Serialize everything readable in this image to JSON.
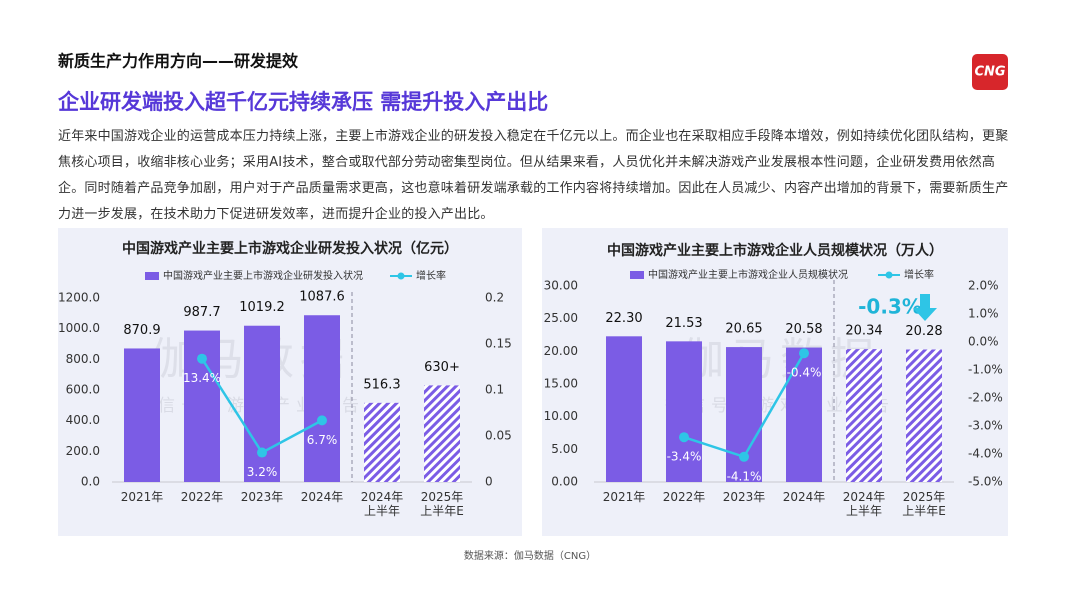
{
  "section_title": "新质生产力作用方向——研发提效",
  "headline": "企业研发端投入超千亿元持续承压  需提升投入产出比",
  "body": "近年来中国游戏企业的运营成本压力持续上涨，主要上市游戏企业的研发投入稳定在千亿元以上。而企业也在采取相应手段降本增效，例如持续优化团队结构，更聚焦核心项目，收缩非核心业务；采用AI技术，整合或取代部分劳动密集型岗位。但从结果来看，人员优化并未解决游戏产业发展根本性问题，企业研发费用依然高企。同时随着产品竞争加剧，用户对于产品质量需求更高，这也意味着研发端承载的工作内容将持续增加。因此在人员减少、内容产出增加的背景下，需要新质生产力进一步发展，在技术助力下促进研发效率，进而提升企业的投入产出比。",
  "logo": "CNG",
  "watermark": [
    "伽马数据",
    "微信号：游戏产业报告"
  ],
  "source": "数据来源：伽马数据（CNG）",
  "chart_data": [
    {
      "type": "bar",
      "title": "中国游戏产业主要上市游戏企业研发投入状况（亿元）",
      "categories": [
        "2021年",
        "2022年",
        "2023年",
        "2024年",
        "2024年\n上半年",
        "2025年\n上半年E"
      ],
      "series": [
        {
          "name": "中国游戏产业主要上市游戏企业研发投入状况",
          "type": "bar",
          "color": "#7b5ce5",
          "values": [
            870.9,
            987.7,
            1019.2,
            1087.6,
            516.3,
            630
          ],
          "value_labels": [
            "870.9",
            "987.7",
            "1019.2",
            "1087.6",
            "516.3",
            "630+"
          ],
          "hatched": [
            false,
            false,
            false,
            false,
            true,
            true
          ]
        },
        {
          "name": "增长率",
          "type": "line",
          "axis": "y2",
          "color": "#2ec5e6",
          "values": [
            null,
            0.134,
            0.032,
            0.067,
            null,
            null
          ],
          "value_labels": [
            null,
            "13.4%",
            "3.2%",
            "6.7%",
            null,
            null
          ]
        }
      ],
      "ylim": [
        0,
        1200
      ],
      "yticks": [
        {
          "value": 0,
          "label": "0.0"
        },
        {
          "value": 200,
          "label": "200.0"
        },
        {
          "value": 400,
          "label": "400.0"
        },
        {
          "value": 600,
          "label": "600.0"
        },
        {
          "value": 800,
          "label": "800.0"
        },
        {
          "value": 1000,
          "label": "1000.0"
        },
        {
          "value": 1200,
          "label": "1200.0"
        }
      ],
      "y2lim": [
        0,
        0.2
      ],
      "y2ticks": [
        0,
        0.05,
        0.1,
        0.15,
        0.2
      ],
      "grid": false,
      "legend": "top"
    },
    {
      "type": "bar",
      "title": "中国游戏产业主要上市游戏企业人员规模状况（万人）",
      "categories": [
        "2021年",
        "2022年",
        "2023年",
        "2024年",
        "2024年\n上半年",
        "2025年\n上半年E"
      ],
      "series": [
        {
          "name": "中国游戏产业主要上市游戏企业人员规模状况",
          "type": "bar",
          "color": "#7b5ce5",
          "values": [
            22.3,
            21.53,
            20.65,
            20.58,
            20.34,
            20.28
          ],
          "value_labels": [
            "22.30",
            "21.53",
            "20.65",
            "20.58",
            "20.34",
            "20.28"
          ],
          "hatched": [
            false,
            false,
            false,
            false,
            true,
            true
          ]
        },
        {
          "name": "增长率",
          "type": "line",
          "axis": "y2",
          "color": "#2ec5e6",
          "values": [
            null,
            -0.034,
            -0.041,
            -0.004,
            null,
            null
          ],
          "value_labels": [
            null,
            "-3.4%",
            "-4.1%",
            "-0.4%",
            null,
            null
          ]
        }
      ],
      "ylim": [
        0,
        30
      ],
      "yticks": [
        {
          "value": 0,
          "label": "0.00"
        },
        {
          "value": 5,
          "label": "5.00"
        },
        {
          "value": 10,
          "label": "10.00"
        },
        {
          "value": 15,
          "label": "15.00"
        },
        {
          "value": 20,
          "label": "20.00"
        },
        {
          "value": 25,
          "label": "25.00"
        },
        {
          "value": 30,
          "label": "30.00"
        }
      ],
      "y2lim": [
        -0.05,
        0.02
      ],
      "y2ticks": [
        {
          "value": -0.05,
          "label": "-5.0%"
        },
        {
          "value": -0.04,
          "label": "-4.0%"
        },
        {
          "value": -0.03,
          "label": "-3.0%"
        },
        {
          "value": -0.02,
          "label": "-2.0%"
        },
        {
          "value": -0.01,
          "label": "-1.0%"
        },
        {
          "value": 0,
          "label": "0.0%"
        },
        {
          "value": 0.01,
          "label": "1.0%"
        },
        {
          "value": 0.02,
          "label": "2.0%"
        }
      ],
      "annotation": "-0.3%",
      "grid": false,
      "legend": "top"
    }
  ]
}
